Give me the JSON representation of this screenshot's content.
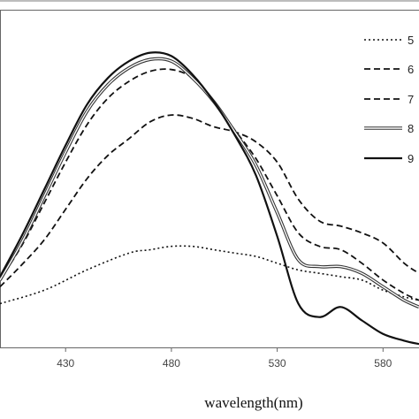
{
  "chart_data": {
    "type": "line",
    "title": "",
    "xlabel": "wavelength(nm)",
    "ylabel": "",
    "xlim": [
      399,
      597
    ],
    "ylim": [
      0,
      1.0
    ],
    "x_ticks": [
      430,
      480,
      530,
      580
    ],
    "grid": false,
    "legend_position": "top-right",
    "series": [
      {
        "name": "5",
        "style": "dotted",
        "points": [
          [
            399,
            0.13
          ],
          [
            420,
            0.17
          ],
          [
            440,
            0.23
          ],
          [
            460,
            0.28
          ],
          [
            470,
            0.29
          ],
          [
            480,
            0.3
          ],
          [
            490,
            0.3
          ],
          [
            500,
            0.29
          ],
          [
            510,
            0.28
          ],
          [
            520,
            0.27
          ],
          [
            530,
            0.25
          ],
          [
            540,
            0.23
          ],
          [
            550,
            0.22
          ],
          [
            560,
            0.21
          ],
          [
            570,
            0.2
          ],
          [
            580,
            0.17
          ],
          [
            590,
            0.15
          ],
          [
            597,
            0.14
          ]
        ]
      },
      {
        "name": "6",
        "style": "dashed",
        "points": [
          [
            399,
            0.2
          ],
          [
            410,
            0.31
          ],
          [
            420,
            0.43
          ],
          [
            430,
            0.55
          ],
          [
            440,
            0.66
          ],
          [
            450,
            0.74
          ],
          [
            460,
            0.79
          ],
          [
            470,
            0.82
          ],
          [
            480,
            0.825
          ],
          [
            490,
            0.8
          ],
          [
            500,
            0.73
          ],
          [
            510,
            0.645
          ],
          [
            520,
            0.56
          ],
          [
            530,
            0.45
          ],
          [
            540,
            0.34
          ],
          [
            550,
            0.3
          ],
          [
            560,
            0.29
          ],
          [
            570,
            0.25
          ],
          [
            580,
            0.2
          ],
          [
            590,
            0.16
          ],
          [
            597,
            0.14
          ]
        ]
      },
      {
        "name": "7",
        "style": "dashed",
        "points": [
          [
            399,
            0.18
          ],
          [
            410,
            0.25
          ],
          [
            420,
            0.32
          ],
          [
            430,
            0.41
          ],
          [
            440,
            0.5
          ],
          [
            450,
            0.57
          ],
          [
            460,
            0.62
          ],
          [
            470,
            0.67
          ],
          [
            480,
            0.69
          ],
          [
            490,
            0.68
          ],
          [
            500,
            0.655
          ],
          [
            510,
            0.64
          ],
          [
            520,
            0.61
          ],
          [
            530,
            0.55
          ],
          [
            540,
            0.44
          ],
          [
            550,
            0.375
          ],
          [
            560,
            0.36
          ],
          [
            570,
            0.34
          ],
          [
            580,
            0.31
          ],
          [
            590,
            0.25
          ],
          [
            597,
            0.22
          ]
        ]
      },
      {
        "name": "8",
        "style": "double",
        "points": [
          [
            399,
            0.2
          ],
          [
            410,
            0.32
          ],
          [
            420,
            0.45
          ],
          [
            430,
            0.58
          ],
          [
            440,
            0.7
          ],
          [
            450,
            0.78
          ],
          [
            460,
            0.83
          ],
          [
            470,
            0.855
          ],
          [
            480,
            0.85
          ],
          [
            490,
            0.8
          ],
          [
            500,
            0.73
          ],
          [
            510,
            0.64
          ],
          [
            520,
            0.54
          ],
          [
            530,
            0.4
          ],
          [
            540,
            0.26
          ],
          [
            550,
            0.24
          ],
          [
            560,
            0.24
          ],
          [
            570,
            0.22
          ],
          [
            580,
            0.18
          ],
          [
            590,
            0.14
          ],
          [
            597,
            0.12
          ]
        ]
      },
      {
        "name": "9",
        "style": "solid",
        "points": [
          [
            399,
            0.21
          ],
          [
            410,
            0.34
          ],
          [
            420,
            0.47
          ],
          [
            430,
            0.6
          ],
          [
            440,
            0.72
          ],
          [
            450,
            0.8
          ],
          [
            460,
            0.85
          ],
          [
            470,
            0.875
          ],
          [
            480,
            0.865
          ],
          [
            490,
            0.81
          ],
          [
            500,
            0.73
          ],
          [
            510,
            0.63
          ],
          [
            520,
            0.51
          ],
          [
            530,
            0.33
          ],
          [
            540,
            0.13
          ],
          [
            550,
            0.09
          ],
          [
            560,
            0.12
          ],
          [
            570,
            0.08
          ],
          [
            580,
            0.04
          ],
          [
            590,
            0.02
          ],
          [
            597,
            0.01
          ]
        ]
      }
    ]
  }
}
